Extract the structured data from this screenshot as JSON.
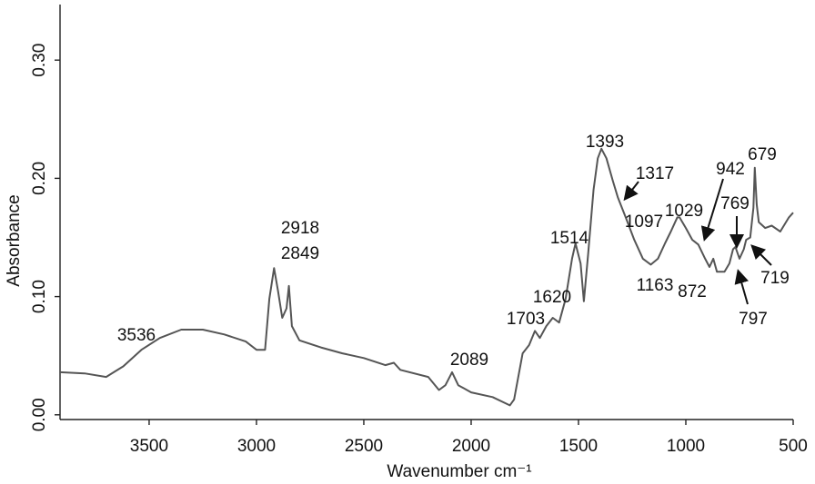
{
  "chart_data": {
    "type": "line",
    "x_label": "Wavenumber cm⁻¹",
    "y_label": "Absorbance",
    "color": "#555555",
    "grid": false,
    "xlim": [
      3915,
      500
    ],
    "ylim": [
      -0.004,
      0.347
    ],
    "xticks": [
      3500,
      3000,
      2500,
      2000,
      1500,
      1000,
      500
    ],
    "yticks": [
      {
        "value": 0,
        "label": "0.00"
      },
      {
        "value": 0.1,
        "label": "0.10"
      },
      {
        "value": 0.2,
        "label": "0.20"
      },
      {
        "value": 0.3,
        "label": "0.30"
      }
    ],
    "x": [
      3915,
      3800,
      3700,
      3620,
      3536,
      3450,
      3350,
      3250,
      3150,
      3050,
      3000,
      2960,
      2940,
      2918,
      2900,
      2880,
      2860,
      2849,
      2835,
      2800,
      2700,
      2600,
      2500,
      2400,
      2360,
      2330,
      2200,
      2150,
      2120,
      2089,
      2060,
      2000,
      1900,
      1820,
      1800,
      1760,
      1730,
      1703,
      1680,
      1650,
      1620,
      1590,
      1560,
      1530,
      1514,
      1490,
      1475,
      1455,
      1430,
      1410,
      1393,
      1370,
      1340,
      1317,
      1280,
      1240,
      1200,
      1163,
      1130,
      1097,
      1070,
      1040,
      1029,
      1000,
      970,
      942,
      910,
      890,
      872,
      855,
      820,
      797,
      780,
      769,
      750,
      730,
      719,
      700,
      685,
      679,
      670,
      660,
      630,
      600,
      560,
      520,
      500
    ],
    "values": [
      0.036,
      0.035,
      0.032,
      0.041,
      0.055,
      0.065,
      0.072,
      0.072,
      0.068,
      0.062,
      0.055,
      0.055,
      0.098,
      0.124,
      0.105,
      0.082,
      0.09,
      0.109,
      0.075,
      0.063,
      0.057,
      0.052,
      0.048,
      0.042,
      0.044,
      0.038,
      0.032,
      0.021,
      0.025,
      0.036,
      0.025,
      0.019,
      0.015,
      0.008,
      0.013,
      0.052,
      0.059,
      0.071,
      0.065,
      0.075,
      0.082,
      0.078,
      0.098,
      0.132,
      0.145,
      0.128,
      0.096,
      0.136,
      0.19,
      0.217,
      0.225,
      0.217,
      0.198,
      0.184,
      0.167,
      0.148,
      0.132,
      0.127,
      0.132,
      0.145,
      0.155,
      0.167,
      0.167,
      0.158,
      0.148,
      0.144,
      0.132,
      0.125,
      0.132,
      0.121,
      0.121,
      0.128,
      0.14,
      0.142,
      0.132,
      0.14,
      0.148,
      0.15,
      0.175,
      0.209,
      0.178,
      0.163,
      0.158,
      0.16,
      0.155,
      0.167,
      0.171
    ],
    "annotations": [
      "3536",
      "2918",
      "2849",
      "2089",
      "1703",
      "1620",
      "1514",
      "1393",
      "1317",
      "1097",
      "1029",
      "942",
      "769",
      "1163",
      "872",
      "719",
      "797",
      "679"
    ]
  }
}
